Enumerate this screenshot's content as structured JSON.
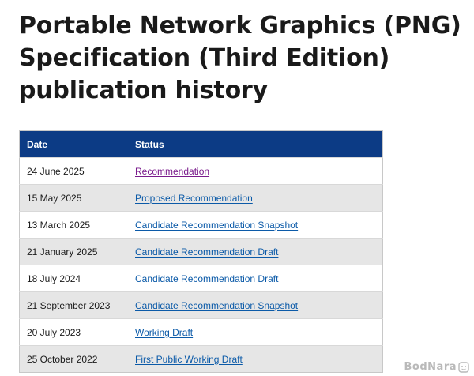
{
  "page": {
    "title": "Portable Network Graphics (PNG) Specification (Third Edition) publication history"
  },
  "table": {
    "headers": {
      "date": "Date",
      "status": "Status"
    },
    "rows": [
      {
        "date": "24 June 2025",
        "status": "Recommendation",
        "visited": true
      },
      {
        "date": "15 May 2025",
        "status": "Proposed Recommendation",
        "visited": false
      },
      {
        "date": "13 March 2025",
        "status": "Candidate Recommendation Snapshot",
        "visited": false
      },
      {
        "date": "21 January 2025",
        "status": "Candidate Recommendation Draft",
        "visited": false
      },
      {
        "date": "18 July 2024",
        "status": "Candidate Recommendation Draft",
        "visited": false
      },
      {
        "date": "21 September 2023",
        "status": "Candidate Recommendation Snapshot",
        "visited": false
      },
      {
        "date": "20 July 2023",
        "status": "Working Draft",
        "visited": false
      },
      {
        "date": "25 October 2022",
        "status": "First Public Working Draft",
        "visited": false
      }
    ]
  },
  "watermark": {
    "text": "BodNara"
  },
  "colors": {
    "header_bg": "#0c3b85",
    "link": "#0b5aa8",
    "link_visited": "#7a1b8c",
    "stripe": "#e6e6e6"
  }
}
